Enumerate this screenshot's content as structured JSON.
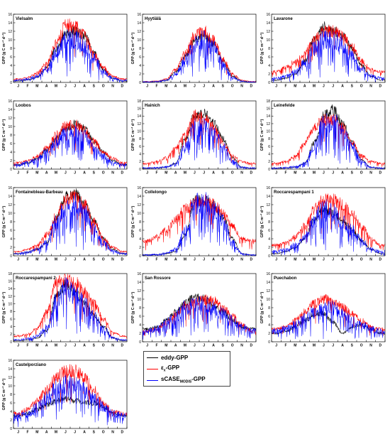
{
  "figure": {
    "ylabel_html": "GPP (g C m⁻² d⁻¹)",
    "months": [
      "J",
      "F",
      "M",
      "A",
      "M",
      "J",
      "J",
      "A",
      "S",
      "O",
      "N",
      "D"
    ]
  },
  "legend": {
    "entries": [
      {
        "key": "eddy",
        "label": "eddy-GPP",
        "color": "#000000"
      },
      {
        "key": "eps",
        "label": "ε",
        "sub": "x",
        "suffix": "-GPP",
        "color": "#ff0000"
      },
      {
        "key": "scase",
        "label": "sCASE",
        "sub": "MODIS",
        "suffix": "-GPP",
        "color": "#0000ff"
      }
    ]
  },
  "colors": {
    "eddy": "#000000",
    "eps": "#ff0000",
    "scase": "#0000ff"
  },
  "chart_data": [
    {
      "type": "line",
      "title": "Vielsalm",
      "ylabel": "GPP (g C m-2 d-1)",
      "ylim": [
        0,
        16
      ],
      "yticks": [
        0,
        2,
        4,
        6,
        8,
        10,
        12,
        14,
        16
      ],
      "categories": [
        "J",
        "F",
        "M",
        "A",
        "M",
        "J",
        "J",
        "A",
        "S",
        "O",
        "N",
        "D"
      ],
      "series": [
        {
          "name": "eddy-GPP",
          "values": [
            0.3,
            0.6,
            1.2,
            3.5,
            8.0,
            11.5,
            12.0,
            11.0,
            7.0,
            3.0,
            1.0,
            0.3
          ]
        },
        {
          "name": "εx-GPP",
          "values": [
            0.8,
            1.2,
            2.2,
            4.5,
            9.0,
            13.5,
            13.0,
            11.0,
            6.5,
            3.5,
            1.5,
            0.8
          ]
        },
        {
          "name": "sCASEMODIS-GPP",
          "values": [
            0.5,
            0.8,
            1.5,
            3.0,
            7.0,
            10.5,
            10.0,
            8.5,
            5.5,
            2.5,
            1.0,
            0.5
          ]
        }
      ]
    },
    {
      "type": "line",
      "title": "Hyytiälä",
      "ylabel": "GPP (g C m-2 d-1)",
      "ylim": [
        0,
        16
      ],
      "yticks": [
        0,
        2,
        4,
        6,
        8,
        10,
        12,
        14,
        16
      ],
      "categories": [
        "J",
        "F",
        "M",
        "A",
        "M",
        "J",
        "J",
        "A",
        "S",
        "O",
        "N",
        "D"
      ],
      "series": [
        {
          "name": "eddy-GPP",
          "values": [
            0.1,
            0.2,
            0.5,
            2.5,
            6.0,
            10.0,
            11.0,
            9.0,
            5.0,
            1.5,
            0.3,
            0.1
          ]
        },
        {
          "name": "εx-GPP",
          "values": [
            0.2,
            0.3,
            0.8,
            3.0,
            7.0,
            11.0,
            12.0,
            10.0,
            5.5,
            2.0,
            0.5,
            0.2
          ]
        },
        {
          "name": "sCASEMODIS-GPP",
          "values": [
            0.1,
            0.2,
            0.5,
            2.0,
            5.5,
            9.0,
            10.0,
            8.0,
            4.5,
            1.2,
            0.3,
            0.1
          ]
        }
      ]
    },
    {
      "type": "line",
      "title": "Lavarone",
      "ylabel": "GPP (g C m-2 d-1)",
      "ylim": [
        0,
        16
      ],
      "yticks": [
        0,
        2,
        4,
        6,
        8,
        10,
        12,
        14,
        16
      ],
      "categories": [
        "J",
        "F",
        "M",
        "A",
        "M",
        "J",
        "J",
        "A",
        "S",
        "O",
        "N",
        "D"
      ],
      "series": [
        {
          "name": "eddy-GPP",
          "values": [
            0.5,
            1.0,
            2.0,
            5.0,
            10.0,
            13.0,
            12.0,
            11.0,
            8.0,
            4.0,
            1.5,
            0.5
          ]
        },
        {
          "name": "εx-GPP",
          "values": [
            2.5,
            3.5,
            5.0,
            7.0,
            10.0,
            12.0,
            12.0,
            11.0,
            8.5,
            5.0,
            3.0,
            2.5
          ]
        },
        {
          "name": "sCASEMODIS-GPP",
          "values": [
            1.0,
            1.5,
            2.5,
            4.5,
            8.0,
            10.0,
            10.0,
            9.0,
            6.0,
            3.0,
            1.5,
            1.0
          ]
        }
      ]
    },
    {
      "type": "line",
      "title": "Loobos",
      "ylabel": "GPP (g C m-2 d-1)",
      "ylim": [
        0,
        16
      ],
      "yticks": [
        0,
        2,
        4,
        6,
        8,
        10,
        12,
        14,
        16
      ],
      "categories": [
        "J",
        "F",
        "M",
        "A",
        "M",
        "J",
        "J",
        "A",
        "S",
        "O",
        "N",
        "D"
      ],
      "series": [
        {
          "name": "eddy-GPP",
          "values": [
            1.0,
            1.5,
            2.5,
            4.5,
            7.0,
            9.5,
            10.5,
            9.5,
            6.5,
            4.0,
            2.0,
            1.0
          ]
        },
        {
          "name": "εx-GPP",
          "values": [
            1.5,
            2.0,
            3.0,
            5.0,
            8.0,
            10.0,
            10.5,
            9.0,
            6.5,
            4.0,
            2.5,
            1.5
          ]
        },
        {
          "name": "sCASEMODIS-GPP",
          "values": [
            1.0,
            1.5,
            2.5,
            4.0,
            6.5,
            8.0,
            8.5,
            7.5,
            5.0,
            3.0,
            1.5,
            1.0
          ]
        }
      ]
    },
    {
      "type": "line",
      "title": "Hainich",
      "ylabel": "GPP (g C m-2 d-1)",
      "ylim": [
        0,
        18
      ],
      "yticks": [
        0,
        2,
        4,
        6,
        8,
        10,
        12,
        14,
        16,
        18
      ],
      "categories": [
        "J",
        "F",
        "M",
        "A",
        "M",
        "J",
        "J",
        "A",
        "S",
        "O",
        "N",
        "D"
      ],
      "series": [
        {
          "name": "eddy-GPP",
          "values": [
            0.2,
            0.3,
            0.5,
            1.5,
            8.0,
            14.0,
            14.5,
            12.0,
            8.0,
            3.0,
            0.5,
            0.2
          ]
        },
        {
          "name": "εx-GPP",
          "values": [
            1.5,
            2.0,
            3.0,
            5.5,
            9.0,
            14.0,
            13.5,
            11.0,
            7.0,
            3.5,
            2.0,
            1.5
          ]
        },
        {
          "name": "sCASEMODIS-GPP",
          "values": [
            0.3,
            0.4,
            0.6,
            1.5,
            6.0,
            11.0,
            11.0,
            9.5,
            6.0,
            2.0,
            0.5,
            0.3
          ]
        }
      ]
    },
    {
      "type": "line",
      "title": "Leinefelde",
      "ylabel": "GPP (g C m-2 d-1)",
      "ylim": [
        0,
        18
      ],
      "yticks": [
        0,
        2,
        4,
        6,
        8,
        10,
        12,
        14,
        16,
        18
      ],
      "categories": [
        "J",
        "F",
        "M",
        "A",
        "M",
        "J",
        "J",
        "A",
        "S",
        "O",
        "N",
        "D"
      ],
      "series": [
        {
          "name": "eddy-GPP",
          "values": [
            0.2,
            0.3,
            0.5,
            1.5,
            7.0,
            14.0,
            15.5,
            12.0,
            7.0,
            2.5,
            0.5,
            0.2
          ]
        },
        {
          "name": "εx-GPP",
          "values": [
            1.5,
            2.0,
            3.5,
            7.0,
            11.0,
            13.0,
            13.0,
            11.0,
            7.0,
            3.5,
            2.0,
            1.5
          ]
        },
        {
          "name": "sCASEMODIS-GPP",
          "values": [
            0.3,
            0.4,
            0.6,
            1.5,
            6.0,
            12.0,
            12.5,
            10.0,
            6.0,
            2.0,
            0.5,
            0.3
          ]
        }
      ]
    },
    {
      "type": "line",
      "title": "Fontainebleau-Barbeau",
      "ylabel": "GPP (g C m-2 d-1)",
      "ylim": [
        0,
        16
      ],
      "yticks": [
        0,
        2,
        4,
        6,
        8,
        10,
        12,
        14,
        16
      ],
      "categories": [
        "J",
        "F",
        "M",
        "A",
        "M",
        "J",
        "J",
        "A",
        "S",
        "O",
        "N",
        "D"
      ],
      "series": [
        {
          "name": "eddy-GPP",
          "values": [
            0.5,
            0.8,
            1.5,
            3.0,
            9.0,
            14.0,
            14.5,
            12.0,
            8.0,
            4.0,
            1.5,
            0.5
          ]
        },
        {
          "name": "εx-GPP",
          "values": [
            1.0,
            1.5,
            2.5,
            5.0,
            9.5,
            13.0,
            14.0,
            12.0,
            8.0,
            4.0,
            2.0,
            1.0
          ]
        },
        {
          "name": "sCASEMODIS-GPP",
          "values": [
            0.5,
            0.8,
            1.5,
            3.0,
            8.0,
            11.5,
            12.0,
            10.0,
            6.5,
            3.0,
            1.0,
            0.5
          ]
        }
      ]
    },
    {
      "type": "line",
      "title": "Collelongo",
      "ylabel": "GPP (g C m-2 d-1)",
      "ylim": [
        0,
        16
      ],
      "yticks": [
        0,
        2,
        4,
        6,
        8,
        10,
        12,
        14,
        16
      ],
      "categories": [
        "J",
        "F",
        "M",
        "A",
        "M",
        "J",
        "J",
        "A",
        "S",
        "O",
        "N",
        "D"
      ],
      "series": [
        {
          "name": "eddy-GPP",
          "values": [
            0.2,
            0.3,
            0.5,
            1.0,
            5.0,
            13.0,
            13.0,
            12.0,
            9.0,
            4.0,
            0.5,
            0.2
          ]
        },
        {
          "name": "εx-GPP",
          "values": [
            3.5,
            4.5,
            6.0,
            8.5,
            11.0,
            12.5,
            13.0,
            12.0,
            10.0,
            7.0,
            4.0,
            3.5
          ]
        },
        {
          "name": "sCASEMODIS-GPP",
          "values": [
            0.2,
            0.3,
            0.6,
            1.5,
            6.0,
            12.0,
            12.5,
            11.0,
            8.0,
            3.0,
            0.5,
            0.2
          ]
        }
      ]
    },
    {
      "type": "line",
      "title": "Roccarespampani 1",
      "ylabel": "GPP (g C m-2 d-1)",
      "ylim": [
        0,
        16
      ],
      "yticks": [
        0,
        2,
        4,
        6,
        8,
        10,
        12,
        14,
        16
      ],
      "categories": [
        "J",
        "F",
        "M",
        "A",
        "M",
        "J",
        "J",
        "A",
        "S",
        "O",
        "N",
        "D"
      ],
      "series": [
        {
          "name": "eddy-GPP",
          "values": [
            0.5,
            1.0,
            2.0,
            4.0,
            8.5,
            11.0,
            10.0,
            8.0,
            6.0,
            3.5,
            1.5,
            0.5
          ]
        },
        {
          "name": "εx-GPP",
          "values": [
            2.5,
            3.0,
            4.5,
            7.0,
            11.0,
            13.0,
            13.0,
            12.0,
            10.0,
            7.0,
            4.0,
            2.5
          ]
        },
        {
          "name": "sCASEMODIS-GPP",
          "values": [
            1.0,
            1.5,
            2.5,
            4.5,
            8.5,
            11.0,
            10.0,
            8.0,
            6.0,
            3.5,
            1.5,
            1.0
          ]
        }
      ]
    },
    {
      "type": "line",
      "title": "Roccarespampani 2",
      "ylabel": "GPP (g C m-2 d-1)",
      "ylim": [
        0,
        18
      ],
      "yticks": [
        0,
        2,
        4,
        6,
        8,
        10,
        12,
        14,
        16,
        18
      ],
      "categories": [
        "J",
        "F",
        "M",
        "A",
        "M",
        "J",
        "J",
        "A",
        "S",
        "O",
        "N",
        "D"
      ],
      "series": [
        {
          "name": "eddy-GPP",
          "values": [
            0.3,
            0.5,
            1.0,
            3.0,
            12.0,
            15.0,
            13.0,
            10.0,
            7.0,
            4.0,
            1.0,
            0.3
          ]
        },
        {
          "name": "εx-GPP",
          "values": [
            1.5,
            2.0,
            3.5,
            8.0,
            15.5,
            16.0,
            15.5,
            13.0,
            10.0,
            6.0,
            2.5,
            1.5
          ]
        },
        {
          "name": "sCASEMODIS-GPP",
          "values": [
            0.5,
            0.8,
            1.5,
            4.0,
            11.0,
            14.0,
            12.5,
            10.0,
            7.0,
            3.5,
            1.0,
            0.5
          ]
        }
      ]
    },
    {
      "type": "line",
      "title": "San Rossore",
      "ylabel": "GPP (g C m-2 d-1)",
      "ylim": [
        0,
        16
      ],
      "yticks": [
        0,
        2,
        4,
        6,
        8,
        10,
        12,
        14,
        16
      ],
      "categories": [
        "J",
        "F",
        "M",
        "A",
        "M",
        "J",
        "J",
        "A",
        "S",
        "O",
        "N",
        "D"
      ],
      "series": [
        {
          "name": "eddy-GPP",
          "values": [
            3.0,
            3.5,
            5.0,
            7.0,
            9.0,
            10.5,
            10.0,
            8.5,
            7.0,
            5.0,
            3.5,
            3.0
          ]
        },
        {
          "name": "εx-GPP",
          "values": [
            2.5,
            3.0,
            4.5,
            6.5,
            8.5,
            9.5,
            10.0,
            9.5,
            8.0,
            6.0,
            4.0,
            2.5
          ]
        },
        {
          "name": "sCASEMODIS-GPP",
          "values": [
            2.5,
            3.0,
            4.5,
            6.0,
            8.0,
            9.0,
            9.0,
            8.0,
            6.5,
            5.0,
            3.5,
            2.5
          ]
        }
      ]
    },
    {
      "type": "line",
      "title": "Puechabon",
      "ylabel": "GPP (g C m-2 d-1)",
      "ylim": [
        0,
        16
      ],
      "yticks": [
        0,
        2,
        4,
        6,
        8,
        10,
        12,
        14,
        16
      ],
      "categories": [
        "J",
        "F",
        "M",
        "A",
        "M",
        "J",
        "J",
        "A",
        "S",
        "O",
        "N",
        "D"
      ],
      "series": [
        {
          "name": "eddy-GPP",
          "values": [
            2.0,
            2.5,
            3.5,
            5.0,
            6.5,
            6.5,
            4.5,
            2.0,
            3.5,
            4.0,
            3.0,
            2.0
          ]
        },
        {
          "name": "εx-GPP",
          "values": [
            3.0,
            3.5,
            5.0,
            7.0,
            9.0,
            10.0,
            9.5,
            8.0,
            6.5,
            5.0,
            3.5,
            3.0
          ]
        },
        {
          "name": "sCASEMODIS-GPP",
          "values": [
            2.5,
            3.0,
            4.0,
            5.5,
            7.0,
            7.5,
            8.0,
            6.5,
            5.0,
            4.0,
            3.0,
            2.5
          ]
        }
      ]
    },
    {
      "type": "line",
      "title": "Castelporziano",
      "ylabel": "GPP (g C m-2 d-1)",
      "ylim": [
        0,
        16
      ],
      "yticks": [
        0,
        2,
        4,
        6,
        8,
        10,
        12,
        14,
        16
      ],
      "categories": [
        "J",
        "F",
        "M",
        "A",
        "M",
        "J",
        "J",
        "A",
        "S",
        "O",
        "N",
        "D"
      ],
      "series": [
        {
          "name": "eddy-GPP",
          "values": [
            3.0,
            3.5,
            4.5,
            5.5,
            6.5,
            7.0,
            6.5,
            6.0,
            6.0,
            5.0,
            3.5,
            3.0
          ]
        },
        {
          "name": "εx-GPP",
          "values": [
            3.5,
            4.5,
            6.5,
            9.0,
            12.0,
            13.5,
            13.5,
            12.0,
            9.0,
            6.0,
            4.0,
            3.5
          ]
        },
        {
          "name": "sCASEMODIS-GPP",
          "values": [
            3.0,
            3.5,
            5.0,
            7.0,
            9.5,
            10.5,
            10.0,
            9.0,
            7.0,
            5.0,
            3.5,
            3.0
          ]
        }
      ]
    }
  ]
}
